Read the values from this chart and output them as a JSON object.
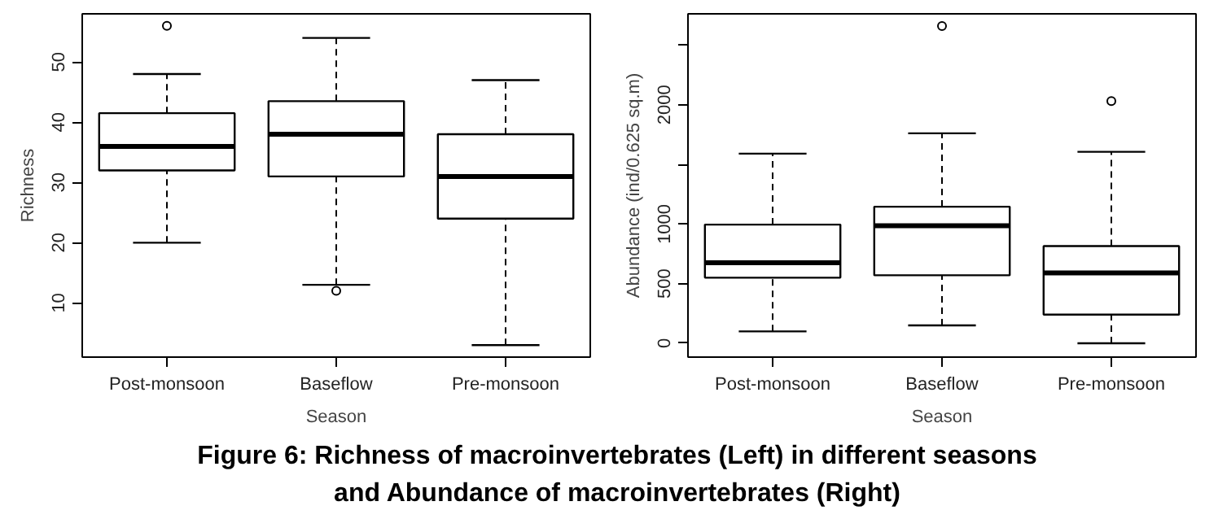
{
  "chart_data": [
    {
      "type": "box",
      "xlabel": "Season",
      "ylabel": "Richness",
      "categories": [
        "Post-monsoon",
        "Baseflow",
        "Pre-monsoon"
      ],
      "ylim": [
        1,
        58
      ],
      "yticks": [
        10,
        20,
        30,
        40,
        50
      ],
      "grid": false,
      "boxes": [
        {
          "low": 20,
          "q1": 32,
          "median": 36,
          "q3": 41.5,
          "high": 48,
          "outliers": [
            56
          ]
        },
        {
          "low": 13,
          "q1": 31,
          "median": 38,
          "q3": 43.5,
          "high": 54,
          "outliers": [
            12
          ]
        },
        {
          "low": 3,
          "q1": 24,
          "median": 31,
          "q3": 38,
          "high": 47
        }
      ],
      "annotations": [
        "Figure 6: Richness of macroinvertebrates (Left) in different seasons and Abundance of macroinvertebrates (Right)"
      ]
    },
    {
      "type": "box",
      "xlabel": "Season",
      "ylabel": "Abundance (ind/0.625 sq.m)",
      "categories": [
        "Post-monsoon",
        "Baseflow",
        "Pre-monsoon"
      ],
      "ylim": [
        -116,
        2762
      ],
      "yticks": [
        0,
        500,
        1000,
        {
          "value": 1500,
          "label": null
        },
        2000,
        {
          "value": 2500,
          "label": null
        }
      ],
      "grid": false,
      "boxes": [
        {
          "low": 100,
          "q1": 550,
          "median": 675,
          "q3": 995,
          "high": 1590
        },
        {
          "low": 150,
          "q1": 570,
          "median": 985,
          "q3": 1145,
          "high": 1760,
          "outliers": [
            2660
          ]
        },
        {
          "low": 0,
          "q1": 240,
          "median": 590,
          "q3": 815,
          "high": 1605,
          "outliers": [
            2030
          ]
        }
      ]
    }
  ]
}
